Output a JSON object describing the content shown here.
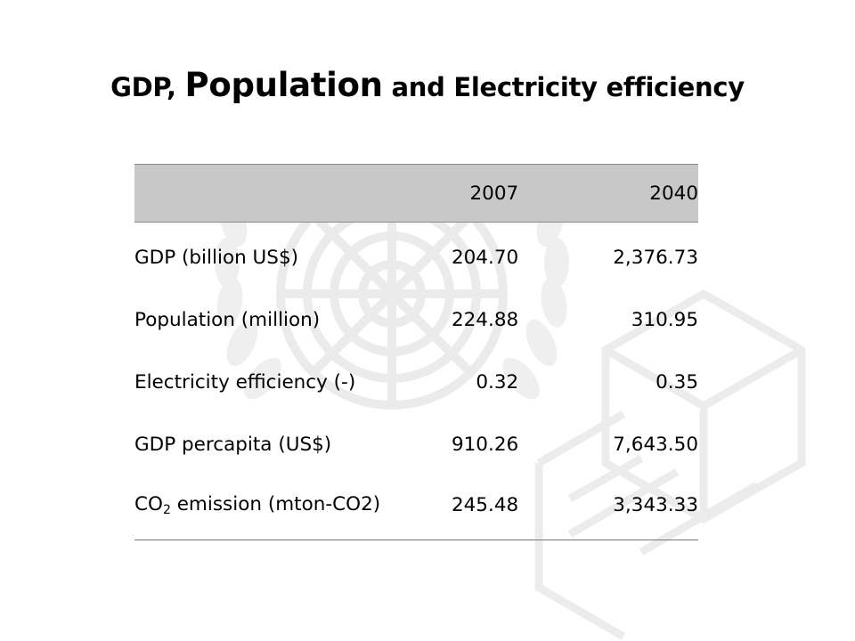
{
  "title": {
    "part1": "GDP, ",
    "part2": "Population",
    "part3": " and Electricity efficiency"
  },
  "table": {
    "headers": [
      "",
      "2007",
      "2040"
    ],
    "rows": [
      {
        "label": "GDP (billion US$)",
        "v2007": "204.70",
        "v2040": "2,376.73"
      },
      {
        "label": "Population (million)",
        "v2007": "224.88",
        "v2040": "310.95"
      },
      {
        "label": "Electricity efficiency (-)",
        "v2007": "0.32",
        "v2040": "0.35"
      },
      {
        "label": "GDP percapita (US$)",
        "v2007": "910.26",
        "v2040": "7,643.50"
      },
      {
        "label_prefix": "CO",
        "label_sub": "2",
        "label_suffix": " emission (mton-CO2)",
        "v2007": "245.48",
        "v2040": "3,343.33"
      }
    ]
  },
  "colors": {
    "header_bg": "#c8c8c8",
    "watermark": "#ececec"
  }
}
